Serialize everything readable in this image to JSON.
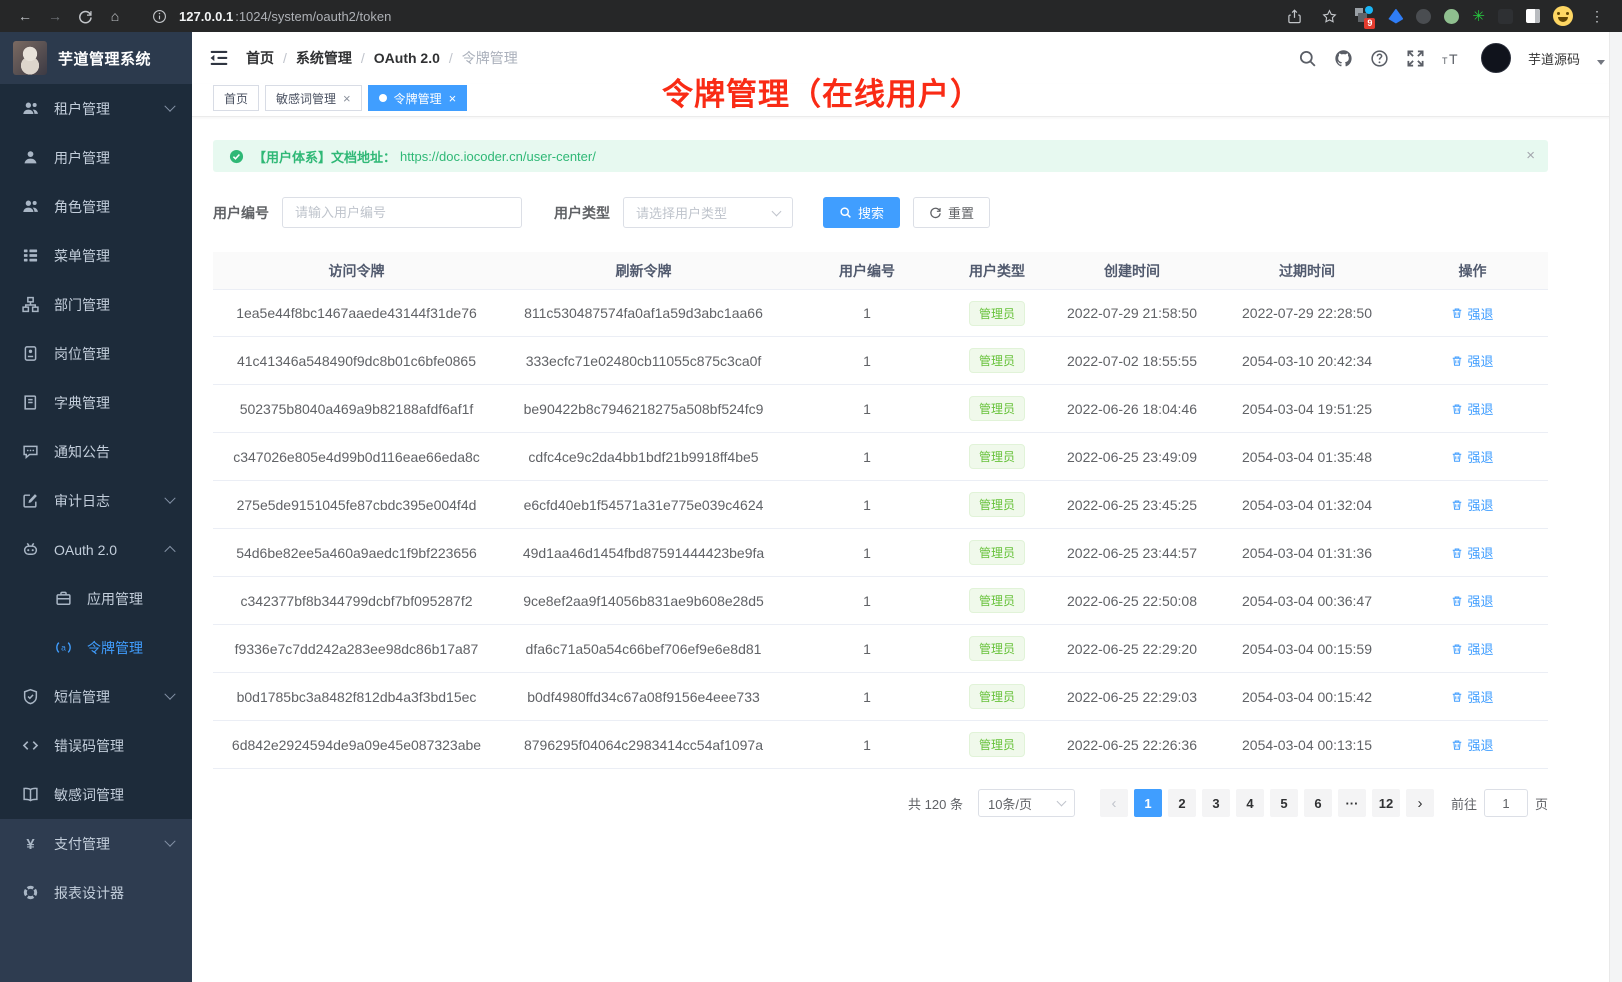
{
  "colors": {
    "accent": "#409eff",
    "sidebar_bg": "#1d2b3a",
    "sidebar_light_bg": "#2e3c50",
    "annotation_red": "#f92b15",
    "alert_green": "#2fb876",
    "badge_green": "#67c23a"
  },
  "browser": {
    "url_host": "127.0.0.1",
    "url_path": ":1024/system/oauth2/token",
    "extension_badge": "9"
  },
  "app": {
    "title": "芋道管理系统"
  },
  "header": {
    "breadcrumb": [
      "首页",
      "系统管理",
      "OAuth 2.0",
      "令牌管理"
    ],
    "user_name": "芋道源码"
  },
  "tabs": [
    {
      "label": "首页",
      "closable": false,
      "active": false
    },
    {
      "label": "敏感词管理",
      "closable": true,
      "active": false
    },
    {
      "label": "令牌管理",
      "closable": true,
      "active": true
    }
  ],
  "annotation": {
    "text": "令牌管理（在线用户）"
  },
  "alert": {
    "text": "【用户体系】文档地址：",
    "link": "https://doc.iocoder.cn/user-center/",
    "close": "×"
  },
  "filters": {
    "user_id_label": "用户编号",
    "user_id_placeholder": "请输入用户编号",
    "user_type_label": "用户类型",
    "user_type_placeholder": "请选择用户类型",
    "search_label": "搜索",
    "reset_label": "重置"
  },
  "sidebar": {
    "items": [
      {
        "label": "租户管理",
        "icon": "tenant-users-icon",
        "chevron": "down",
        "sub": false,
        "active": false,
        "light": false
      },
      {
        "label": "用户管理",
        "icon": "user-icon",
        "chevron": "",
        "sub": false,
        "active": false,
        "light": false
      },
      {
        "label": "角色管理",
        "icon": "role-users-icon",
        "chevron": "",
        "sub": false,
        "active": false,
        "light": false
      },
      {
        "label": "菜单管理",
        "icon": "menu-tree-icon",
        "chevron": "",
        "sub": false,
        "active": false,
        "light": false
      },
      {
        "label": "部门管理",
        "icon": "org-chart-icon",
        "chevron": "",
        "sub": false,
        "active": false,
        "light": false
      },
      {
        "label": "岗位管理",
        "icon": "post-badge-icon",
        "chevron": "",
        "sub": false,
        "active": false,
        "light": false
      },
      {
        "label": "字典管理",
        "icon": "dict-book-icon",
        "chevron": "",
        "sub": false,
        "active": false,
        "light": false
      },
      {
        "label": "通知公告",
        "icon": "notice-chat-icon",
        "chevron": "",
        "sub": false,
        "active": false,
        "light": false
      },
      {
        "label": "审计日志",
        "icon": "audit-log-icon",
        "chevron": "down",
        "sub": false,
        "active": false,
        "light": false
      },
      {
        "label": "OAuth 2.0",
        "icon": "oauth-robot-icon",
        "chevron": "up",
        "sub": false,
        "active": false,
        "light": false
      },
      {
        "label": "应用管理",
        "icon": "app-briefcase-icon",
        "chevron": "",
        "sub": true,
        "active": false,
        "light": false
      },
      {
        "label": "令牌管理",
        "icon": "token-signal-icon",
        "chevron": "",
        "sub": true,
        "active": true,
        "light": false
      },
      {
        "label": "短信管理",
        "icon": "sms-shield-icon",
        "chevron": "down",
        "sub": false,
        "active": false,
        "light": false
      },
      {
        "label": "错误码管理",
        "icon": "error-code-icon",
        "chevron": "",
        "sub": false,
        "active": false,
        "light": false
      },
      {
        "label": "敏感词管理",
        "icon": "sensitive-book-icon",
        "chevron": "",
        "sub": false,
        "active": false,
        "light": false
      },
      {
        "label": "支付管理",
        "icon": "pay-yen-icon",
        "chevron": "down",
        "sub": false,
        "active": false,
        "light": true
      },
      {
        "label": "报表设计器",
        "icon": "report-donut-icon",
        "chevron": "",
        "sub": false,
        "active": false,
        "light": true
      }
    ]
  },
  "table": {
    "columns": [
      "访问令牌",
      "刷新令牌",
      "用户编号",
      "用户类型",
      "创建时间",
      "过期时间",
      "操作"
    ],
    "action_label": "强退",
    "rows": [
      {
        "access": "1ea5e44f8bc1467aaede43144f31de76",
        "refresh": "811c530487574fa0af1a59d3abc1aa66",
        "user_id": "1",
        "user_type": "管理员",
        "created": "2022-07-29 21:58:50",
        "expires": "2022-07-29 22:28:50"
      },
      {
        "access": "41c41346a548490f9dc8b01c6bfe0865",
        "refresh": "333ecfc71e02480cb11055c875c3ca0f",
        "user_id": "1",
        "user_type": "管理员",
        "created": "2022-07-02 18:55:55",
        "expires": "2054-03-10 20:42:34"
      },
      {
        "access": "502375b8040a469a9b82188afdf6af1f",
        "refresh": "be90422b8c7946218275a508bf524fc9",
        "user_id": "1",
        "user_type": "管理员",
        "created": "2022-06-26 18:04:46",
        "expires": "2054-03-04 19:51:25"
      },
      {
        "access": "c347026e805e4d99b0d116eae66eda8c",
        "refresh": "cdfc4ce9c2da4bb1bdf21b9918ff4be5",
        "user_id": "1",
        "user_type": "管理员",
        "created": "2022-06-25 23:49:09",
        "expires": "2054-03-04 01:35:48"
      },
      {
        "access": "275e5de9151045fe87cbdc395e004f4d",
        "refresh": "e6cfd40eb1f54571a31e775e039c4624",
        "user_id": "1",
        "user_type": "管理员",
        "created": "2022-06-25 23:45:25",
        "expires": "2054-03-04 01:32:04"
      },
      {
        "access": "54d6be82ee5a460a9aedc1f9bf223656",
        "refresh": "49d1aa46d1454fbd87591444423be9fa",
        "user_id": "1",
        "user_type": "管理员",
        "created": "2022-06-25 23:44:57",
        "expires": "2054-03-04 01:31:36"
      },
      {
        "access": "c342377bf8b344799dcbf7bf095287f2",
        "refresh": "9ce8ef2aa9f14056b831ae9b608e28d5",
        "user_id": "1",
        "user_type": "管理员",
        "created": "2022-06-25 22:50:08",
        "expires": "2054-03-04 00:36:47"
      },
      {
        "access": "f9336e7c7dd242a283ee98dc86b17a87",
        "refresh": "dfa6c71a50a54c66bef706ef9e6e8d81",
        "user_id": "1",
        "user_type": "管理员",
        "created": "2022-06-25 22:29:20",
        "expires": "2054-03-04 00:15:59"
      },
      {
        "access": "b0d1785bc3a8482f812db4a3f3bd15ec",
        "refresh": "b0df4980ffd34c67a08f9156e4eee733",
        "user_id": "1",
        "user_type": "管理员",
        "created": "2022-06-25 22:29:03",
        "expires": "2054-03-04 00:15:42"
      },
      {
        "access": "6d842e2924594de9a09e45e087323abe",
        "refresh": "8796295f04064c2983414cc54af1097a",
        "user_id": "1",
        "user_type": "管理员",
        "created": "2022-06-25 22:26:36",
        "expires": "2054-03-04 00:13:15"
      }
    ]
  },
  "pagination": {
    "total": "共 120 条",
    "page_size": "10条/页",
    "pages": [
      "1",
      "2",
      "3",
      "4",
      "5",
      "6",
      "···",
      "12"
    ],
    "active_page": "1",
    "jump_label": "前往",
    "jump_value": "1",
    "page_unit": "页"
  }
}
